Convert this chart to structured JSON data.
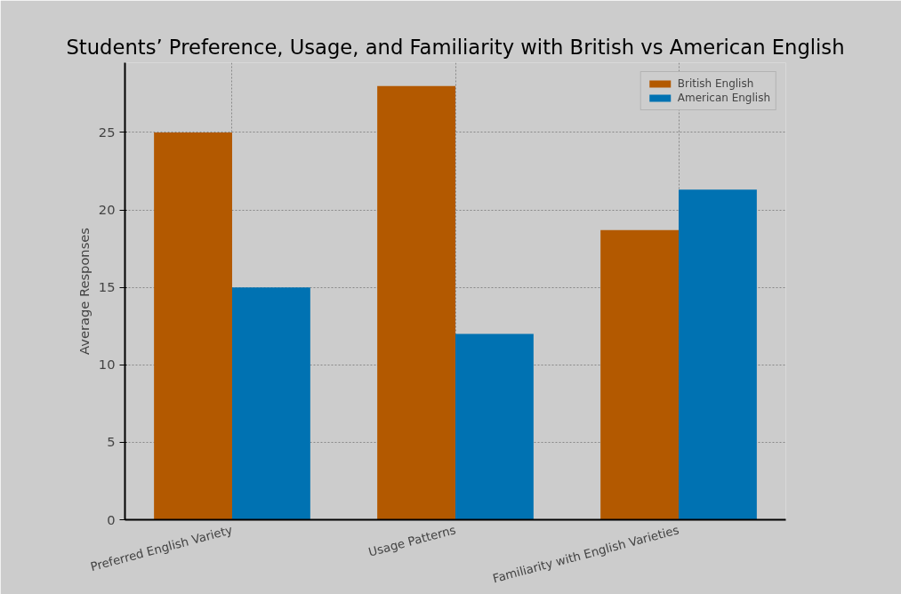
{
  "chart_data": {
    "type": "bar",
    "title": "Students’ Preference, Usage, and Familiarity with British vs American English",
    "ylabel": "Average Responses",
    "categories": [
      "Preferred English Variety",
      "Usage Patterns",
      "Familiarity with English Varieties"
    ],
    "series": [
      {
        "name": "British English",
        "color": "#b35900",
        "values": [
          25,
          28,
          18.7
        ]
      },
      {
        "name": "American English",
        "color": "#0072b2",
        "values": [
          15,
          12,
          21.3
        ]
      }
    ],
    "ylim": [
      0,
      29.5
    ],
    "yticks": [
      0,
      5,
      10,
      15,
      20,
      25
    ],
    "grid": true,
    "legend": "top right"
  }
}
